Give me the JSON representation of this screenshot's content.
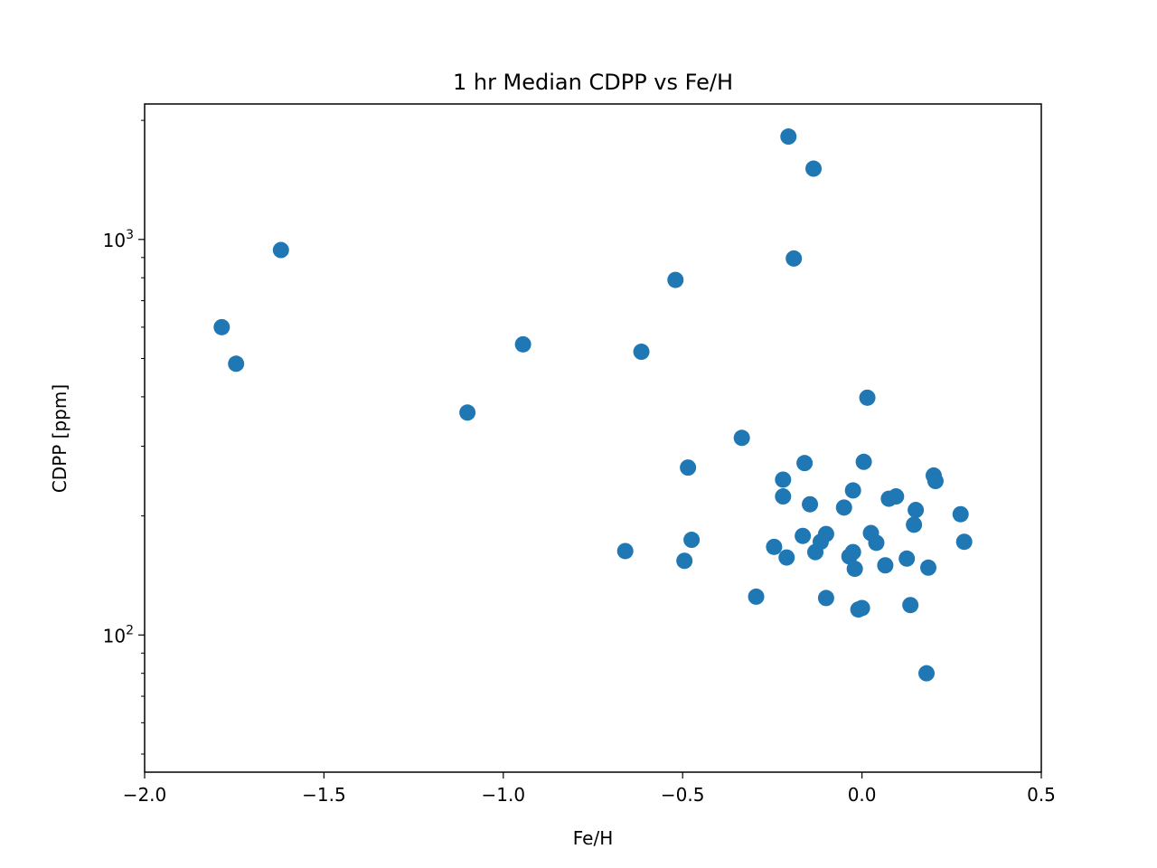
{
  "chart_data": {
    "type": "scatter",
    "title": "1 hr Median CDPP vs Fe/H",
    "xlabel": "Fe/H",
    "ylabel": "CDPP [ppm]",
    "xlim": [
      -2.0,
      0.5
    ],
    "ylim": [
      45,
      2200
    ],
    "yscale": "log",
    "x_ticks": [
      -2.0,
      -1.5,
      -1.0,
      -0.5,
      0.0,
      0.5
    ],
    "x_tick_labels": [
      "−2.0",
      "−1.5",
      "−1.0",
      "−0.5",
      "0.0",
      "0.5"
    ],
    "y_ticks": [
      {
        "value": 100,
        "base": "10",
        "exp": "2"
      },
      {
        "value": 1000,
        "base": "10",
        "exp": "3"
      }
    ],
    "grid": false,
    "marker_color": "#1f77b4",
    "points": [
      {
        "x": -1.785,
        "y": 600
      },
      {
        "x": -1.745,
        "y": 485
      },
      {
        "x": -1.62,
        "y": 940
      },
      {
        "x": -1.1,
        "y": 365
      },
      {
        "x": -0.945,
        "y": 543
      },
      {
        "x": -0.66,
        "y": 163
      },
      {
        "x": -0.615,
        "y": 520
      },
      {
        "x": -0.52,
        "y": 790
      },
      {
        "x": -0.495,
        "y": 154
      },
      {
        "x": -0.485,
        "y": 265
      },
      {
        "x": -0.475,
        "y": 174
      },
      {
        "x": -0.335,
        "y": 315
      },
      {
        "x": -0.295,
        "y": 125
      },
      {
        "x": -0.245,
        "y": 167
      },
      {
        "x": -0.22,
        "y": 247
      },
      {
        "x": -0.22,
        "y": 224
      },
      {
        "x": -0.21,
        "y": 157
      },
      {
        "x": -0.205,
        "y": 1820
      },
      {
        "x": -0.19,
        "y": 895
      },
      {
        "x": -0.165,
        "y": 178
      },
      {
        "x": -0.16,
        "y": 272
      },
      {
        "x": -0.145,
        "y": 214
      },
      {
        "x": -0.13,
        "y": 162
      },
      {
        "x": -0.135,
        "y": 1510
      },
      {
        "x": -0.115,
        "y": 172
      },
      {
        "x": -0.1,
        "y": 180
      },
      {
        "x": -0.1,
        "y": 124
      },
      {
        "x": -0.05,
        "y": 210
      },
      {
        "x": -0.035,
        "y": 158
      },
      {
        "x": -0.025,
        "y": 232
      },
      {
        "x": -0.025,
        "y": 162
      },
      {
        "x": -0.02,
        "y": 147
      },
      {
        "x": -0.01,
        "y": 116
      },
      {
        "x": 0.0,
        "y": 117
      },
      {
        "x": 0.005,
        "y": 274
      },
      {
        "x": 0.015,
        "y": 398
      },
      {
        "x": 0.025,
        "y": 181
      },
      {
        "x": 0.04,
        "y": 171
      },
      {
        "x": 0.065,
        "y": 150
      },
      {
        "x": 0.075,
        "y": 221
      },
      {
        "x": 0.095,
        "y": 224
      },
      {
        "x": 0.125,
        "y": 156
      },
      {
        "x": 0.135,
        "y": 119
      },
      {
        "x": 0.145,
        "y": 190
      },
      {
        "x": 0.15,
        "y": 207
      },
      {
        "x": 0.18,
        "y": 80
      },
      {
        "x": 0.185,
        "y": 148
      },
      {
        "x": 0.2,
        "y": 253
      },
      {
        "x": 0.205,
        "y": 245
      },
      {
        "x": 0.275,
        "y": 202
      },
      {
        "x": 0.285,
        "y": 172
      }
    ]
  }
}
